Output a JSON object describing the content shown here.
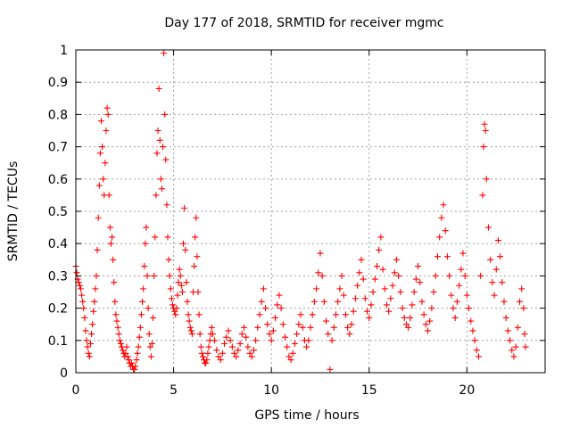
{
  "chart_data": {
    "type": "scatter",
    "title": "Day 177 of 2018, SRMTID for receiver mgmc",
    "xlabel": "GPS time / hours",
    "ylabel": "SRMTID / TECUs",
    "xlim": [
      0,
      24
    ],
    "ylim": [
      0,
      1
    ],
    "x_ticks": [
      0,
      5,
      10,
      15,
      20
    ],
    "x_tick_labels": [
      "0",
      "5",
      "10",
      "15",
      "20"
    ],
    "y_ticks": [
      0,
      0.1,
      0.2,
      0.3,
      0.4,
      0.5,
      0.6,
      0.7,
      0.8,
      0.9,
      1
    ],
    "y_tick_labels": [
      "0",
      "0.1",
      "0.2",
      "0.3",
      "0.4",
      "0.5",
      "0.6",
      "0.7",
      "0.8",
      "0.9",
      "1"
    ],
    "grid": true,
    "marker": "+",
    "color": "#ff0000",
    "series": [
      {
        "name": "SRMTID",
        "points": [
          [
            0.0,
            0.33
          ],
          [
            0.05,
            0.31
          ],
          [
            0.1,
            0.29
          ],
          [
            0.15,
            0.28
          ],
          [
            0.2,
            0.27
          ],
          [
            0.25,
            0.26
          ],
          [
            0.3,
            0.24
          ],
          [
            0.35,
            0.22
          ],
          [
            0.4,
            0.2
          ],
          [
            0.45,
            0.17
          ],
          [
            0.5,
            0.13
          ],
          [
            0.55,
            0.1
          ],
          [
            0.6,
            0.08
          ],
          [
            0.65,
            0.06
          ],
          [
            0.7,
            0.05
          ],
          [
            0.75,
            0.09
          ],
          [
            0.8,
            0.12
          ],
          [
            0.85,
            0.15
          ],
          [
            0.9,
            0.19
          ],
          [
            0.95,
            0.22
          ],
          [
            1.0,
            0.26
          ],
          [
            1.05,
            0.3
          ],
          [
            1.1,
            0.38
          ],
          [
            1.15,
            0.48
          ],
          [
            1.2,
            0.58
          ],
          [
            1.25,
            0.68
          ],
          [
            1.3,
            0.78
          ],
          [
            1.35,
            0.7
          ],
          [
            1.4,
            0.6
          ],
          [
            1.45,
            0.55
          ],
          [
            1.5,
            0.65
          ],
          [
            1.55,
            0.75
          ],
          [
            1.6,
            0.82
          ],
          [
            1.65,
            0.8
          ],
          [
            1.7,
            0.55
          ],
          [
            1.75,
            0.45
          ],
          [
            1.8,
            0.4
          ],
          [
            1.85,
            0.42
          ],
          [
            1.9,
            0.35
          ],
          [
            1.95,
            0.28
          ],
          [
            2.0,
            0.22
          ],
          [
            2.05,
            0.18
          ],
          [
            2.1,
            0.16
          ],
          [
            2.15,
            0.14
          ],
          [
            2.2,
            0.12
          ],
          [
            2.25,
            0.1
          ],
          [
            2.3,
            0.09
          ],
          [
            2.35,
            0.08
          ],
          [
            2.4,
            0.07
          ],
          [
            2.45,
            0.06
          ],
          [
            2.5,
            0.05
          ],
          [
            2.55,
            0.06
          ],
          [
            2.6,
            0.08
          ],
          [
            2.65,
            0.05
          ],
          [
            2.7,
            0.04
          ],
          [
            2.75,
            0.03
          ],
          [
            2.8,
            0.02
          ],
          [
            2.85,
            0.03
          ],
          [
            2.9,
            0.02
          ],
          [
            2.95,
            0.01
          ],
          [
            3.0,
            0.01
          ],
          [
            3.05,
            0.02
          ],
          [
            3.1,
            0.04
          ],
          [
            3.15,
            0.06
          ],
          [
            3.2,
            0.08
          ],
          [
            3.25,
            0.11
          ],
          [
            3.3,
            0.14
          ],
          [
            3.35,
            0.18
          ],
          [
            3.4,
            0.22
          ],
          [
            3.45,
            0.26
          ],
          [
            3.5,
            0.33
          ],
          [
            3.55,
            0.4
          ],
          [
            3.6,
            0.45
          ],
          [
            3.65,
            0.3
          ],
          [
            3.7,
            0.2
          ],
          [
            3.75,
            0.12
          ],
          [
            3.8,
            0.08
          ],
          [
            3.85,
            0.05
          ],
          [
            3.9,
            0.09
          ],
          [
            3.95,
            0.17
          ],
          [
            4.0,
            0.3
          ],
          [
            4.05,
            0.42
          ],
          [
            4.1,
            0.55
          ],
          [
            4.15,
            0.68
          ],
          [
            4.2,
            0.75
          ],
          [
            4.25,
            0.88
          ],
          [
            4.3,
            0.72
          ],
          [
            4.35,
            0.6
          ],
          [
            4.4,
            0.57
          ],
          [
            4.45,
            0.7
          ],
          [
            4.5,
            0.99
          ],
          [
            4.55,
            0.8
          ],
          [
            4.6,
            0.66
          ],
          [
            4.65,
            0.52
          ],
          [
            4.7,
            0.42
          ],
          [
            4.75,
            0.35
          ],
          [
            4.8,
            0.3
          ],
          [
            4.85,
            0.26
          ],
          [
            4.9,
            0.23
          ],
          [
            4.95,
            0.21
          ],
          [
            5.0,
            0.2
          ],
          [
            5.05,
            0.19
          ],
          [
            5.1,
            0.18
          ],
          [
            5.15,
            0.2
          ],
          [
            5.2,
            0.24
          ],
          [
            5.25,
            0.28
          ],
          [
            5.3,
            0.32
          ],
          [
            5.35,
            0.3
          ],
          [
            5.4,
            0.27
          ],
          [
            5.45,
            0.25
          ],
          [
            5.5,
            0.4
          ],
          [
            5.55,
            0.51
          ],
          [
            5.6,
            0.38
          ],
          [
            5.65,
            0.28
          ],
          [
            5.7,
            0.22
          ],
          [
            5.75,
            0.18
          ],
          [
            5.8,
            0.16
          ],
          [
            5.85,
            0.14
          ],
          [
            5.9,
            0.13
          ],
          [
            5.95,
            0.12
          ],
          [
            6.0,
            0.25
          ],
          [
            6.05,
            0.33
          ],
          [
            6.1,
            0.42
          ],
          [
            6.15,
            0.48
          ],
          [
            6.2,
            0.36
          ],
          [
            6.25,
            0.25
          ],
          [
            6.3,
            0.18
          ],
          [
            6.35,
            0.12
          ],
          [
            6.4,
            0.08
          ],
          [
            6.45,
            0.06
          ],
          [
            6.5,
            0.05
          ],
          [
            6.55,
            0.04
          ],
          [
            6.6,
            0.03
          ],
          [
            6.65,
            0.03
          ],
          [
            6.7,
            0.04
          ],
          [
            6.75,
            0.06
          ],
          [
            6.8,
            0.08
          ],
          [
            6.85,
            0.1
          ],
          [
            6.9,
            0.12
          ],
          [
            6.95,
            0.14
          ],
          [
            7.0,
            0.12
          ],
          [
            7.1,
            0.1
          ],
          [
            7.2,
            0.07
          ],
          [
            7.3,
            0.05
          ],
          [
            7.4,
            0.04
          ],
          [
            7.5,
            0.06
          ],
          [
            7.6,
            0.09
          ],
          [
            7.7,
            0.11
          ],
          [
            7.8,
            0.13
          ],
          [
            7.9,
            0.1
          ],
          [
            8.0,
            0.08
          ],
          [
            8.1,
            0.06
          ],
          [
            8.2,
            0.05
          ],
          [
            8.3,
            0.07
          ],
          [
            8.4,
            0.09
          ],
          [
            8.5,
            0.12
          ],
          [
            8.6,
            0.14
          ],
          [
            8.7,
            0.11
          ],
          [
            8.8,
            0.08
          ],
          [
            8.9,
            0.06
          ],
          [
            9.0,
            0.05
          ],
          [
            9.1,
            0.07
          ],
          [
            9.2,
            0.1
          ],
          [
            9.3,
            0.14
          ],
          [
            9.4,
            0.18
          ],
          [
            9.5,
            0.22
          ],
          [
            9.6,
            0.26
          ],
          [
            9.7,
            0.2
          ],
          [
            9.8,
            0.15
          ],
          [
            9.9,
            0.12
          ],
          [
            10.0,
            0.1
          ],
          [
            10.1,
            0.13
          ],
          [
            10.2,
            0.17
          ],
          [
            10.3,
            0.21
          ],
          [
            10.4,
            0.24
          ],
          [
            10.5,
            0.2
          ],
          [
            10.6,
            0.15
          ],
          [
            10.7,
            0.11
          ],
          [
            10.8,
            0.08
          ],
          [
            10.9,
            0.05
          ],
          [
            11.0,
            0.04
          ],
          [
            11.1,
            0.06
          ],
          [
            11.2,
            0.09
          ],
          [
            11.3,
            0.12
          ],
          [
            11.4,
            0.15
          ],
          [
            11.5,
            0.18
          ],
          [
            11.6,
            0.14
          ],
          [
            11.7,
            0.1
          ],
          [
            11.8,
            0.08
          ],
          [
            11.9,
            0.1
          ],
          [
            12.0,
            0.14
          ],
          [
            12.1,
            0.18
          ],
          [
            12.2,
            0.22
          ],
          [
            12.3,
            0.26
          ],
          [
            12.4,
            0.31
          ],
          [
            12.5,
            0.37
          ],
          [
            12.6,
            0.3
          ],
          [
            12.7,
            0.22
          ],
          [
            12.8,
            0.16
          ],
          [
            12.9,
            0.12
          ],
          [
            13.0,
            0.01
          ],
          [
            13.1,
            0.1
          ],
          [
            13.2,
            0.14
          ],
          [
            13.3,
            0.18
          ],
          [
            13.4,
            0.22
          ],
          [
            13.5,
            0.26
          ],
          [
            13.6,
            0.3
          ],
          [
            13.7,
            0.24
          ],
          [
            13.8,
            0.18
          ],
          [
            13.9,
            0.14
          ],
          [
            14.0,
            0.12
          ],
          [
            14.1,
            0.15
          ],
          [
            14.2,
            0.19
          ],
          [
            14.3,
            0.23
          ],
          [
            14.4,
            0.27
          ],
          [
            14.5,
            0.31
          ],
          [
            14.6,
            0.35
          ],
          [
            14.7,
            0.29
          ],
          [
            14.8,
            0.23
          ],
          [
            14.9,
            0.19
          ],
          [
            15.0,
            0.17
          ],
          [
            15.1,
            0.21
          ],
          [
            15.2,
            0.25
          ],
          [
            15.3,
            0.29
          ],
          [
            15.4,
            0.33
          ],
          [
            15.5,
            0.38
          ],
          [
            15.6,
            0.42
          ],
          [
            15.7,
            0.32
          ],
          [
            15.8,
            0.26
          ],
          [
            15.9,
            0.21
          ],
          [
            16.0,
            0.19
          ],
          [
            16.1,
            0.23
          ],
          [
            16.2,
            0.27
          ],
          [
            16.3,
            0.31
          ],
          [
            16.4,
            0.35
          ],
          [
            16.5,
            0.3
          ],
          [
            16.6,
            0.25
          ],
          [
            16.7,
            0.2
          ],
          [
            16.8,
            0.17
          ],
          [
            16.9,
            0.15
          ],
          [
            17.0,
            0.14
          ],
          [
            17.1,
            0.17
          ],
          [
            17.2,
            0.21
          ],
          [
            17.3,
            0.25
          ],
          [
            17.4,
            0.29
          ],
          [
            17.5,
            0.33
          ],
          [
            17.6,
            0.28
          ],
          [
            17.7,
            0.22
          ],
          [
            17.8,
            0.18
          ],
          [
            17.9,
            0.15
          ],
          [
            18.0,
            0.13
          ],
          [
            18.1,
            0.16
          ],
          [
            18.2,
            0.2
          ],
          [
            18.3,
            0.25
          ],
          [
            18.4,
            0.3
          ],
          [
            18.5,
            0.36
          ],
          [
            18.6,
            0.42
          ],
          [
            18.7,
            0.48
          ],
          [
            18.8,
            0.52
          ],
          [
            18.9,
            0.44
          ],
          [
            19.0,
            0.36
          ],
          [
            19.1,
            0.3
          ],
          [
            19.2,
            0.24
          ],
          [
            19.3,
            0.2
          ],
          [
            19.4,
            0.17
          ],
          [
            19.5,
            0.22
          ],
          [
            19.6,
            0.27
          ],
          [
            19.7,
            0.32
          ],
          [
            19.8,
            0.37
          ],
          [
            19.9,
            0.3
          ],
          [
            20.0,
            0.24
          ],
          [
            20.1,
            0.2
          ],
          [
            20.2,
            0.16
          ],
          [
            20.3,
            0.13
          ],
          [
            20.4,
            0.1
          ],
          [
            20.5,
            0.07
          ],
          [
            20.6,
            0.05
          ],
          [
            20.7,
            0.3
          ],
          [
            20.8,
            0.55
          ],
          [
            20.85,
            0.7
          ],
          [
            20.9,
            0.77
          ],
          [
            20.95,
            0.75
          ],
          [
            21.0,
            0.6
          ],
          [
            21.1,
            0.45
          ],
          [
            21.2,
            0.35
          ],
          [
            21.3,
            0.28
          ],
          [
            21.4,
            0.24
          ],
          [
            21.5,
            0.32
          ],
          [
            21.6,
            0.41
          ],
          [
            21.7,
            0.36
          ],
          [
            21.8,
            0.28
          ],
          [
            21.9,
            0.22
          ],
          [
            22.0,
            0.17
          ],
          [
            22.1,
            0.13
          ],
          [
            22.2,
            0.1
          ],
          [
            22.3,
            0.07
          ],
          [
            22.4,
            0.05
          ],
          [
            22.5,
            0.08
          ],
          [
            22.6,
            0.14
          ],
          [
            22.7,
            0.22
          ],
          [
            22.8,
            0.26
          ],
          [
            22.9,
            0.2
          ],
          [
            22.95,
            0.12
          ],
          [
            23.0,
            0.08
          ]
        ]
      }
    ]
  }
}
